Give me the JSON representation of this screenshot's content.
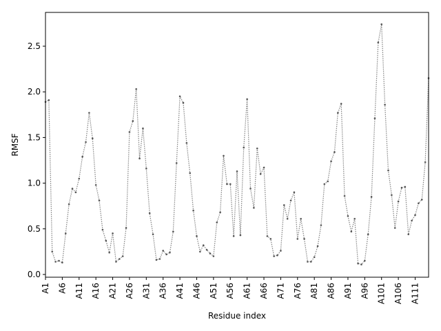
{
  "chart_data": {
    "type": "line",
    "xlabel": "Residue index",
    "ylabel": "RMSF",
    "ylim": [
      -0.03,
      2.87
    ],
    "yticks": [
      0.0,
      0.5,
      1.0,
      1.5,
      2.0,
      2.5
    ],
    "ytick_labels": [
      "0.0",
      "0.5",
      "1.0",
      "1.5",
      "2.0",
      "2.5"
    ],
    "xtick_labels": [
      "A1",
      "A6",
      "A11",
      "A16",
      "A21",
      "A26",
      "A31",
      "A36",
      "A41",
      "A46",
      "A51",
      "A56",
      "A61",
      "A66",
      "A71",
      "A76",
      "A81",
      "A86",
      "A91",
      "A96",
      "A101",
      "A106",
      "A111"
    ],
    "xtick_every": 5,
    "grid": false,
    "line_color": "#808080",
    "marker_color": "#555555",
    "series": [
      {
        "values": [
          1.89,
          1.91,
          0.25,
          0.14,
          0.15,
          0.13,
          0.45,
          0.77,
          0.94,
          0.9,
          1.05,
          1.29,
          1.45,
          1.77,
          1.49,
          0.98,
          0.81,
          0.49,
          0.37,
          0.24,
          0.45,
          0.14,
          0.17,
          0.2,
          0.51,
          1.56,
          1.68,
          2.03,
          1.27,
          1.6,
          1.16,
          0.67,
          0.44,
          0.16,
          0.17,
          0.26,
          0.22,
          0.24,
          0.47,
          1.22,
          1.95,
          1.88,
          1.44,
          1.11,
          0.7,
          0.42,
          0.25,
          0.32,
          0.27,
          0.23,
          0.2,
          0.57,
          0.68,
          1.3,
          0.99,
          0.99,
          0.42,
          1.13,
          0.43,
          1.39,
          1.92,
          0.94,
          0.73,
          1.38,
          1.1,
          1.17,
          0.42,
          0.39,
          0.2,
          0.21,
          0.26,
          0.76,
          0.61,
          0.81,
          0.9,
          0.39,
          0.61,
          0.39,
          0.14,
          0.14,
          0.19,
          0.31,
          0.54,
          0.99,
          1.02,
          1.24,
          1.34,
          1.77,
          1.87,
          0.86,
          0.64,
          0.47,
          0.61,
          0.12,
          0.11,
          0.15,
          0.44,
          0.85,
          1.71,
          2.54,
          2.74,
          1.86,
          1.14,
          0.87,
          0.51,
          0.8,
          0.95,
          0.96,
          0.44,
          0.59,
          0.65,
          0.78,
          0.82,
          1.23,
          2.15
        ]
      }
    ]
  }
}
